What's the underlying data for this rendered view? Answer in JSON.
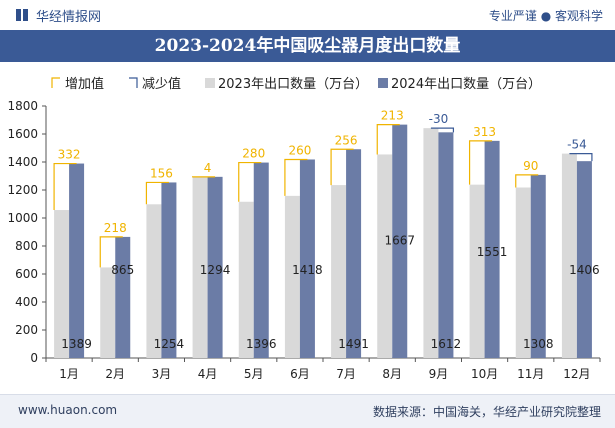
{
  "header": {
    "brand": "华经情报网",
    "tagline": "专业严谨 ● 客观科学"
  },
  "title": "2023-2024年中国吸尘器月度出口数量",
  "footer": {
    "site": "www.huaon.com",
    "source": "数据来源：中国海关，华经产业研究院整理"
  },
  "chart_data": {
    "type": "bar",
    "title": "2023-2024年中国吸尘器月度出口数量",
    "categories": [
      "1月",
      "2月",
      "3月",
      "4月",
      "5月",
      "6月",
      "7月",
      "8月",
      "9月",
      "10月",
      "11月",
      "12月"
    ],
    "series": [
      {
        "name": "2023年出口数量（万台）",
        "color": "#d9d9d9",
        "values": [
          1057,
          647,
          1098,
          1290,
          1116,
          1158,
          1235,
          1454,
          1642,
          1238,
          1218,
          1460
        ]
      },
      {
        "name": "2024年出口数量（万台）",
        "color": "#6b7ca6",
        "values": [
          1389,
          865,
          1254,
          1294,
          1396,
          1418,
          1491,
          1667,
          1612,
          1551,
          1308,
          1406
        ]
      }
    ],
    "differences": [
      332,
      218,
      156,
      4,
      280,
      260,
      256,
      213,
      -30,
      313,
      90,
      -54
    ],
    "legend": [
      "增加值",
      "减少值",
      "2023年出口数量（万台）",
      "2024年出口数量（万台）"
    ],
    "legend_position": "top",
    "ylim": [
      0,
      1800
    ],
    "yticks": [
      0,
      200,
      400,
      600,
      800,
      1000,
      1200,
      1400,
      1600,
      1800
    ],
    "increase_color": "#f0b400",
    "decrease_color": "#3a5a96",
    "grid": false
  }
}
